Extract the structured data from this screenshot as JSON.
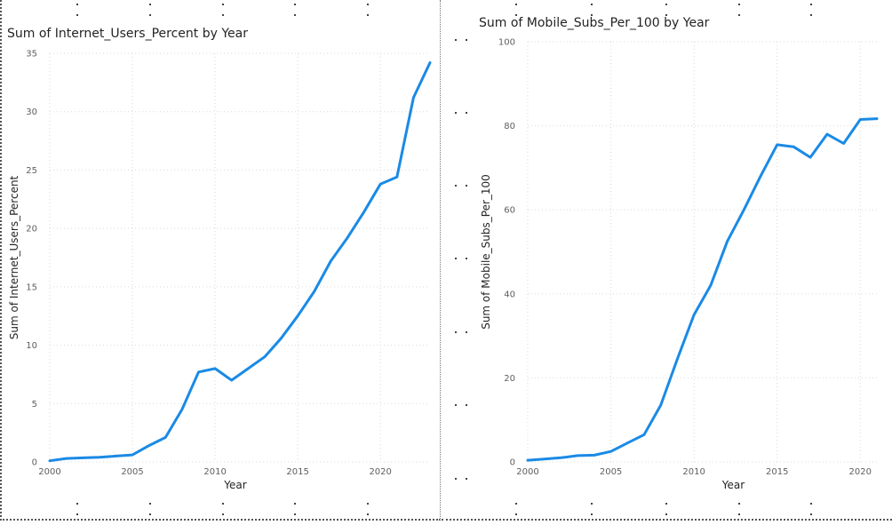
{
  "chart_data": [
    {
      "type": "line",
      "title": "Sum of Internet_Users_Percent by Year",
      "xlabel": "Year",
      "ylabel": "Sum of Internet_Users_Percent",
      "xlim": [
        2000,
        2023
      ],
      "ylim": [
        0,
        35
      ],
      "xticks": [
        2000,
        2005,
        2010,
        2015,
        2020
      ],
      "yticks": [
        0,
        5,
        10,
        15,
        20,
        25,
        30,
        35
      ],
      "grid": true,
      "series": [
        {
          "color": "#1a8ae5",
          "x": [
            2000,
            2001,
            2002,
            2003,
            2004,
            2005,
            2006,
            2007,
            2008,
            2009,
            2010,
            2011,
            2012,
            2013,
            2014,
            2015,
            2016,
            2017,
            2018,
            2019,
            2020,
            2021,
            2022,
            2023
          ],
          "y": [
            0.1,
            0.3,
            0.35,
            0.4,
            0.5,
            0.6,
            1.4,
            2.1,
            4.5,
            7.7,
            8.0,
            7.0,
            8.0,
            9.0,
            10.6,
            12.5,
            14.6,
            17.2,
            19.2,
            21.4,
            23.8,
            24.4,
            31.2,
            34.2
          ]
        }
      ]
    },
    {
      "type": "line",
      "title": "Sum of Mobile_Subs_Per_100 by Year",
      "xlabel": "Year",
      "ylabel": "Sum of Mobile_Subs_Per_100",
      "xlim": [
        2000,
        2021
      ],
      "ylim": [
        0,
        100
      ],
      "xticks": [
        2000,
        2005,
        2010,
        2015,
        2020
      ],
      "yticks": [
        0,
        20,
        40,
        60,
        80,
        100
      ],
      "grid": true,
      "series": [
        {
          "color": "#1a8ae5",
          "x": [
            2000,
            2001,
            2002,
            2003,
            2004,
            2005,
            2006,
            2007,
            2008,
            2009,
            2010,
            2011,
            2012,
            2013,
            2014,
            2015,
            2016,
            2017,
            2018,
            2019,
            2020,
            2021
          ],
          "y": [
            0.4,
            0.7,
            1.0,
            1.5,
            1.6,
            2.5,
            4.5,
            6.5,
            13.5,
            24.5,
            35.0,
            42.0,
            52.5,
            60.0,
            68.0,
            75.5,
            75.0,
            72.5,
            78.0,
            75.8,
            81.5,
            81.7
          ]
        }
      ]
    }
  ]
}
